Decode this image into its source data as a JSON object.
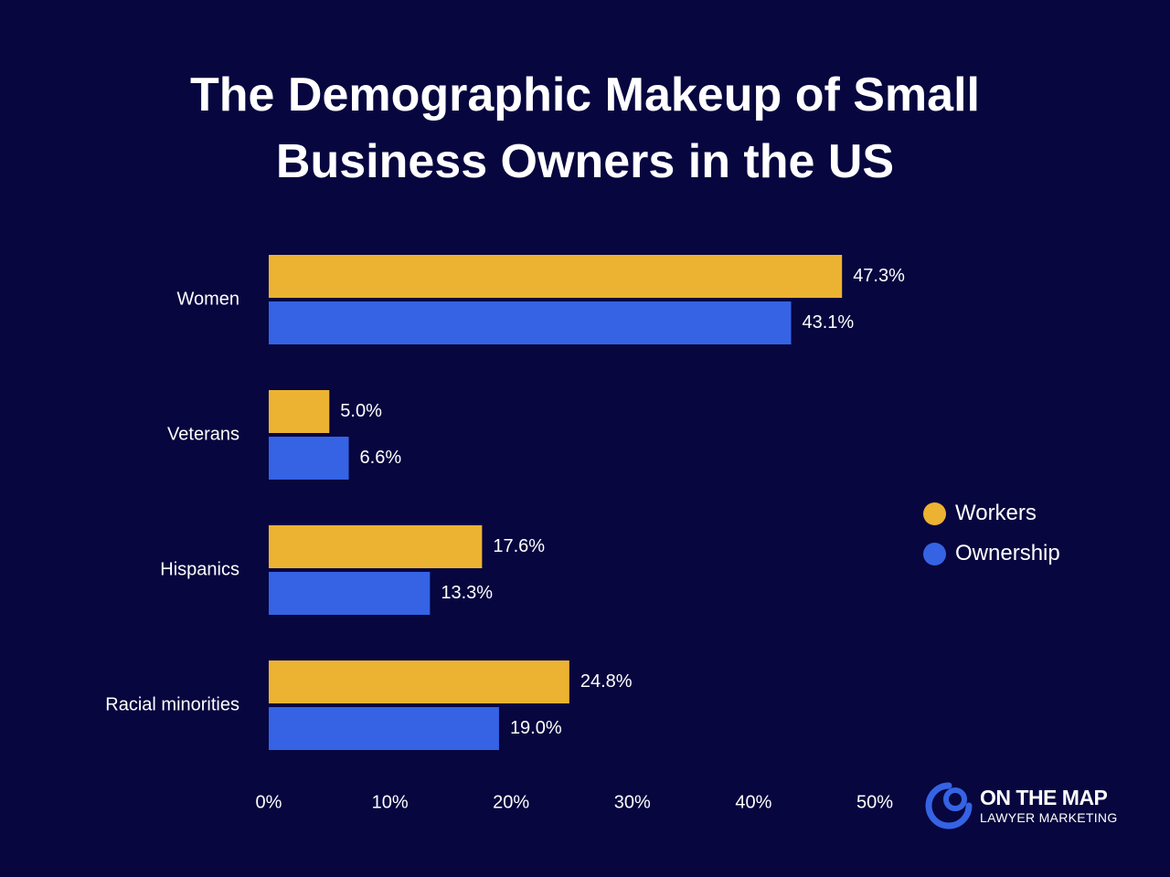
{
  "chart_data": {
    "type": "bar",
    "orientation": "horizontal",
    "title_lines": [
      "The Demographic Makeup of Small",
      "Business Owners in the US"
    ],
    "categories": [
      "Women",
      "Veterans",
      "Hispanics",
      "Racial minorities"
    ],
    "series": [
      {
        "name": "Workers",
        "color": "#ecb232",
        "values": [
          47.3,
          5.0,
          17.6,
          24.8
        ],
        "labels": [
          "47.3%",
          "5.0%",
          "17.6%",
          "24.8%"
        ]
      },
      {
        "name": "Ownership",
        "color": "#3563e4",
        "values": [
          43.1,
          6.6,
          13.3,
          19.0
        ],
        "labels": [
          "43.1%",
          "6.6%",
          "13.3%",
          "19.0%"
        ]
      }
    ],
    "xlim": [
      0,
      50
    ],
    "xticks": [
      0,
      10,
      20,
      30,
      40,
      50
    ],
    "xtick_labels": [
      "0%",
      "10%",
      "20%",
      "30%",
      "40%",
      "50%"
    ],
    "grid": false,
    "legend_position": "right"
  },
  "branding": {
    "logo_main": "ON THE MAP",
    "logo_sub": "LAWYER MARKETING",
    "logo_icon": "on-the-map-logo-icon"
  }
}
